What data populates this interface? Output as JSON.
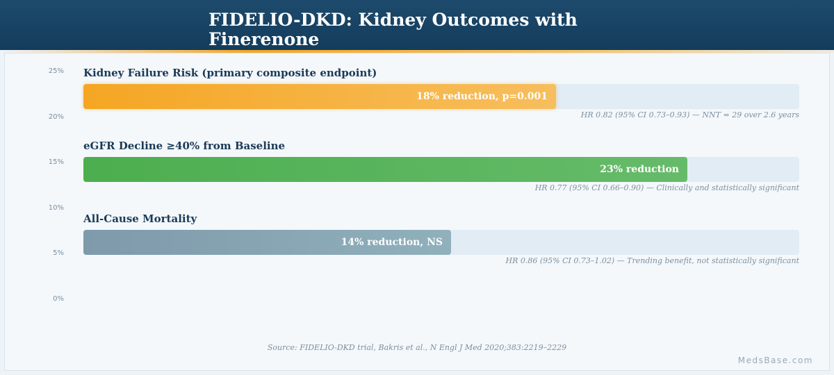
{
  "header": {
    "title": "FIDELIO-DKD: Kidney Outcomes with Finerenone"
  },
  "colors": {
    "header": "#1a4567",
    "accent": "#f5a623",
    "kidney_failure": "#f5a623",
    "egfr": "#4cae4f",
    "mortality": "#7f9aab",
    "track": "#e2ecf4"
  },
  "chart_data": {
    "type": "bar",
    "orientation": "horizontal",
    "y_ticks": [
      "25%",
      "20%",
      "15%",
      "10%",
      "5%",
      "0%"
    ],
    "max_percent": 30,
    "series": [
      {
        "label": "Kidney Failure Risk (primary composite endpoint)",
        "reduction_percent": 18,
        "bar_text": "18% reduction, p=0.001",
        "note": "HR 0.82 (95% CI 0.73–0.93) — NNT = 29 over 2.6 years",
        "color": "#f5a623",
        "color_end": "#f7be5e"
      },
      {
        "label": "eGFR Decline ≥40% from Baseline",
        "reduction_percent": 23,
        "bar_text": "23% reduction",
        "note": "HR 0.77 (95% CI 0.66–0.90) — Clinically and statistically significant",
        "color": "#4cae4f",
        "color_end": "#66bb6a"
      },
      {
        "label": "All-Cause Mortality",
        "reduction_percent": 14,
        "bar_text": "14% reduction, NS",
        "note": "HR 0.86 (95% CI 0.73–1.02) — Trending benefit, not statistically significant",
        "color": "#7f9aab",
        "color_end": "#90b0bc"
      }
    ]
  },
  "footer": {
    "source": "Source: FIDELIO-DKD trial, Bakris et al., N Engl J Med 2020;383:2219–2229",
    "watermark": "MedsBase.com"
  }
}
